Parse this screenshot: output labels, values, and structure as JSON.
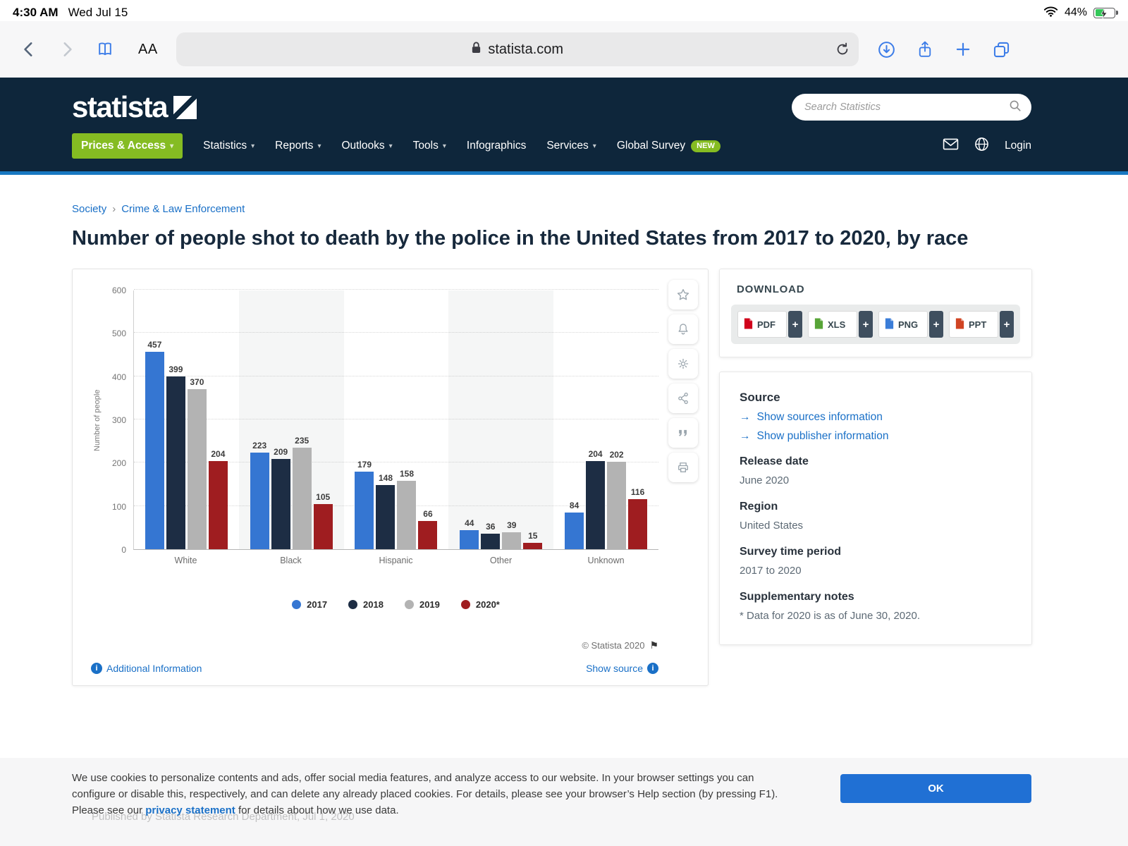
{
  "status_bar": {
    "time": "4:30 AM",
    "date": "Wed Jul 15",
    "battery_percent": "44%"
  },
  "browser": {
    "url": "statista.com",
    "text_size_label": "AA",
    "icons": [
      "back-icon",
      "forward-icon",
      "bookmarks-icon",
      "lock-icon",
      "reload-icon",
      "download-icon",
      "share-icon",
      "new-tab-icon",
      "tabs-icon"
    ]
  },
  "glyphs": {
    "caret": "▾",
    "separator": "›",
    "arrow": "→",
    "flag": "⚑",
    "info": "i",
    "plus": "+"
  },
  "site_header": {
    "logo": "statista",
    "search_placeholder": "Search Statistics",
    "nav": [
      {
        "label": "Prices & Access",
        "dropdown": true,
        "highlight": true
      },
      {
        "label": "Statistics",
        "dropdown": true
      },
      {
        "label": "Reports",
        "dropdown": true
      },
      {
        "label": "Outlooks",
        "dropdown": true
      },
      {
        "label": "Tools",
        "dropdown": true
      },
      {
        "label": "Infographics",
        "dropdown": false
      },
      {
        "label": "Services",
        "dropdown": true
      },
      {
        "label": "Global Survey",
        "dropdown": false,
        "badge": "NEW"
      }
    ],
    "login_label": "Login",
    "right_icons": [
      "envelope-icon",
      "globe-icon"
    ]
  },
  "breadcrumb": [
    "Society",
    "Crime & Law Enforcement"
  ],
  "page_title": "Number of people shot to death by the police in the United States from 2017 to 2020, by race",
  "chart_data": {
    "type": "bar",
    "title": "Number of people shot to death by the police in the United States from 2017 to 2020, by race",
    "categories": [
      "White",
      "Black",
      "Hispanic",
      "Other",
      "Unknown"
    ],
    "series": [
      {
        "name": "2017",
        "color": "#3576d2",
        "values": [
          457,
          223,
          179,
          44,
          84
        ]
      },
      {
        "name": "2018",
        "color": "#1d2d44",
        "values": [
          399,
          209,
          148,
          36,
          204
        ]
      },
      {
        "name": "2019",
        "color": "#b3b3b3",
        "values": [
          370,
          235,
          158,
          39,
          202
        ]
      },
      {
        "name": "2020*",
        "color": "#9f1d20",
        "values": [
          204,
          105,
          66,
          15,
          116
        ]
      }
    ],
    "xlabel": "",
    "ylabel": "Number of people",
    "ylim": [
      0,
      600
    ],
    "ytick_step": 100,
    "grid": true,
    "legend_position": "bottom"
  },
  "action_rail": [
    "favorite",
    "alerts",
    "settings",
    "share",
    "cite",
    "print"
  ],
  "chart_footer": {
    "additional_info": "Additional Information",
    "copyright": "© Statista 2020",
    "show_source": "Show source"
  },
  "download_panel": {
    "title": "DOWNLOAD",
    "formats": [
      {
        "label": "PDF",
        "color": "#d0021b"
      },
      {
        "label": "XLS",
        "color": "#57a437"
      },
      {
        "label": "PNG",
        "color": "#3b7dd8"
      },
      {
        "label": "PPT",
        "color": "#d04423"
      }
    ]
  },
  "source_panel": {
    "source_title": "Source",
    "links": [
      "Show sources information",
      "Show publisher information"
    ],
    "release_date_label": "Release date",
    "release_date": "June 2020",
    "region_label": "Region",
    "region": "United States",
    "survey_label": "Survey time period",
    "survey": "2017 to 2020",
    "notes_label": "Supplementary notes",
    "notes": "* Data for 2020 is as of June 30, 2020."
  },
  "cookie_banner": {
    "line1": "We use cookies to personalize contents and ads, offer social media features, and analyze access to our website. In your browser settings you can",
    "line2": "configure or disable this, respectively, and can delete any already placed cookies. For details, please see your browser’s Help section (by pressing F1).",
    "line3_prefix": "Please see our ",
    "privacy_link": "privacy statement",
    "line3_suffix": " for details about how we use data.",
    "ok_label": "OK",
    "published_line": "Published by Statista Research Department, Jul 1, 2020"
  }
}
